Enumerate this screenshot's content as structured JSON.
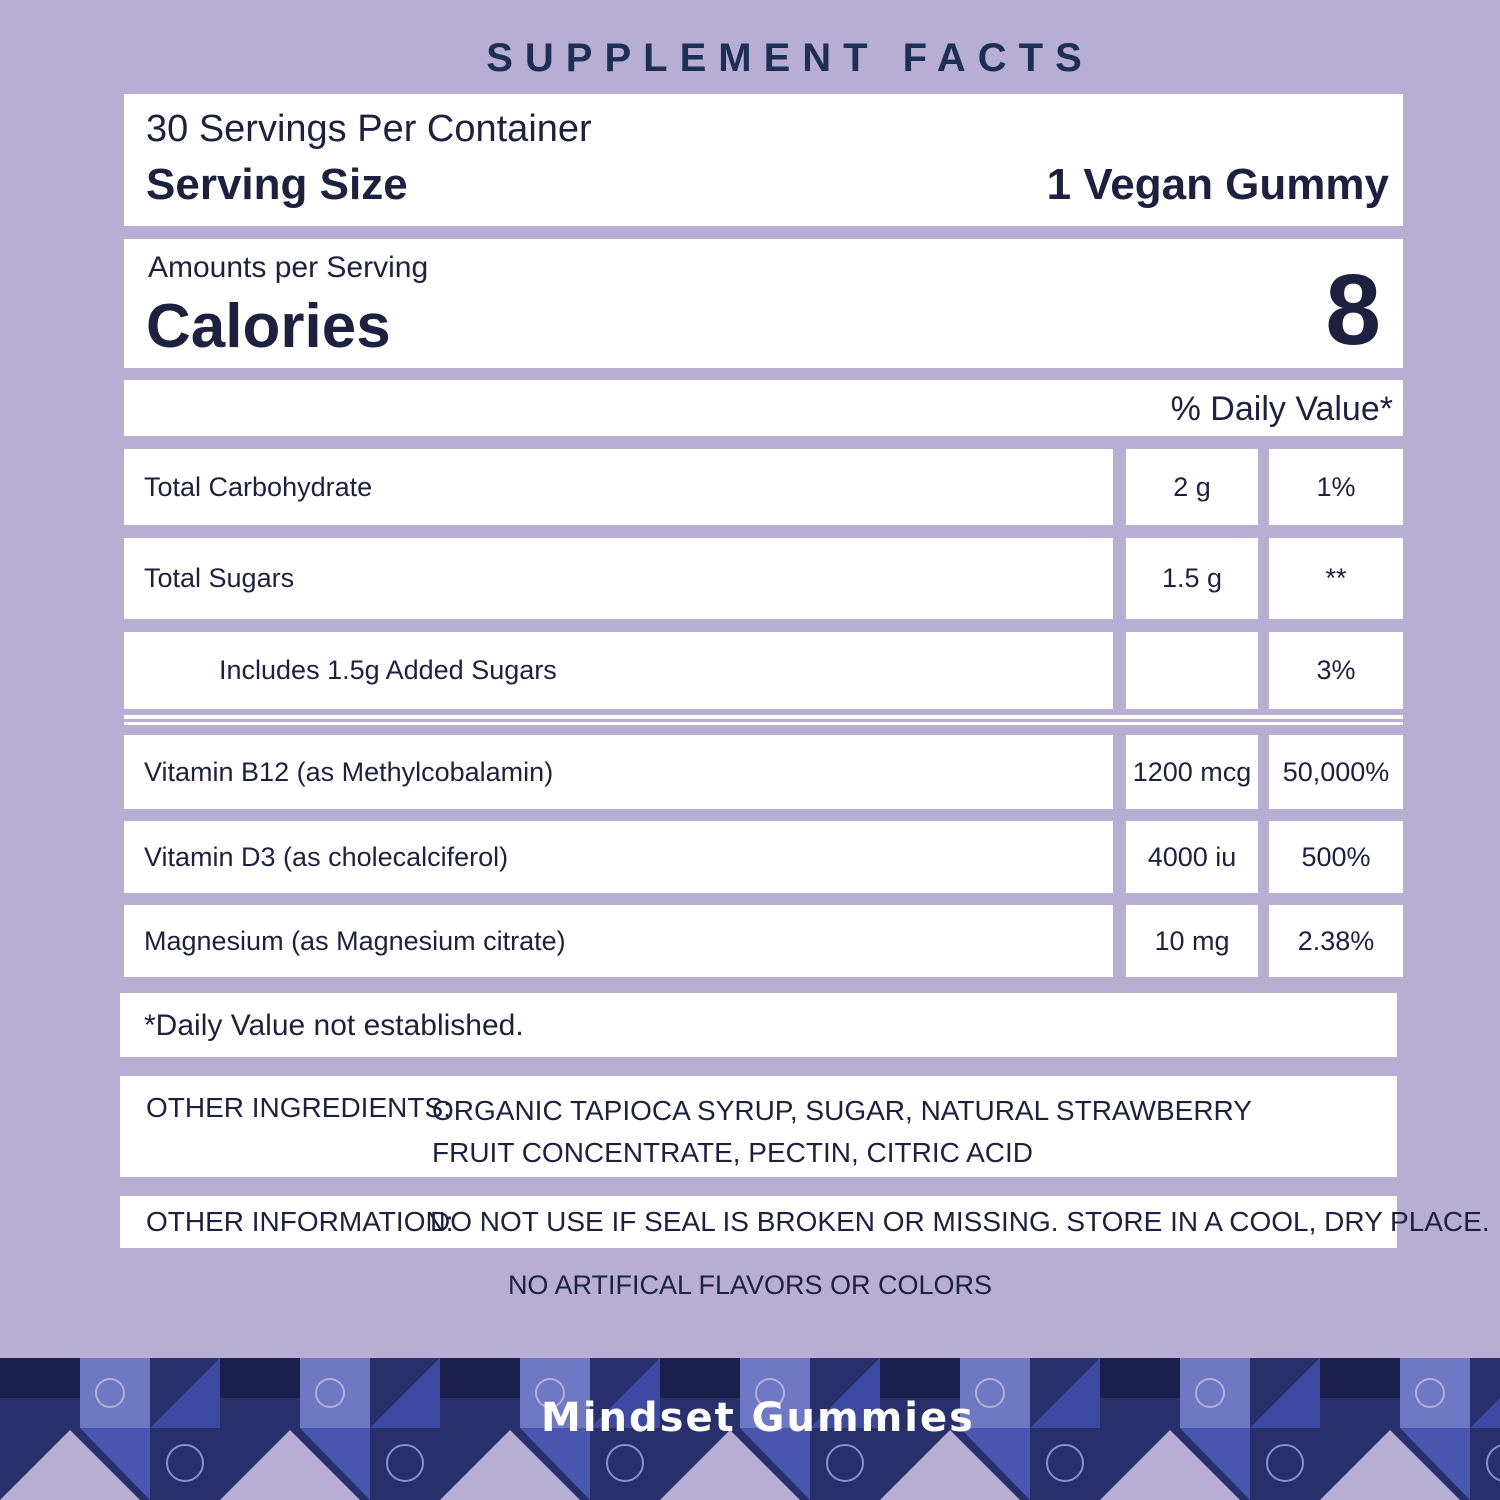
{
  "title": "SUPPLEMENT FACTS",
  "servings": "30 Servings Per Container",
  "serving_size": {
    "label": "Serving Size",
    "value": "1 Vegan Gummy"
  },
  "calories": {
    "caption": "Amounts per Serving",
    "label": "Calories",
    "value": "8"
  },
  "daily_value_header": "% Daily Value*",
  "rows": [
    {
      "name": "Total Carbohydrate",
      "amount": "2 g",
      "dv": "1%"
    },
    {
      "name": "Total Sugars",
      "amount": "1.5 g",
      "dv": "**"
    },
    {
      "name": "Includes 1.5g Added Sugars",
      "dv": "3%"
    },
    {
      "name": "Vitamin B12 (as Methylcobalamin)",
      "amount": "1200 mcg",
      "dv": "50,000%"
    },
    {
      "name": "Vitamin D3 (as cholecalciferol)",
      "amount": "4000 iu",
      "dv": "500%"
    },
    {
      "name": "Magnesium  (as Magnesium citrate)",
      "amount": "10 mg",
      "dv": "2.38%"
    }
  ],
  "footnote": "*Daily Value not established.",
  "other_ingredients": {
    "label": "OTHER INGREDIENTS:",
    "text": "ORGANIC TAPIOCA SYRUP, SUGAR, NATURAL STRAWBERRY FRUIT CONCENTRATE, PECTIN, CITRIC ACID"
  },
  "other_information": {
    "label": "OTHER INFORMATION:",
    "text": "DO NOT USE IF SEAL IS BROKEN OR MISSING. STORE IN A COOL, DRY PLACE."
  },
  "note": "NO ARTIFICAL FLAVORS OR COLORS",
  "brand": "Mindset Gummies"
}
